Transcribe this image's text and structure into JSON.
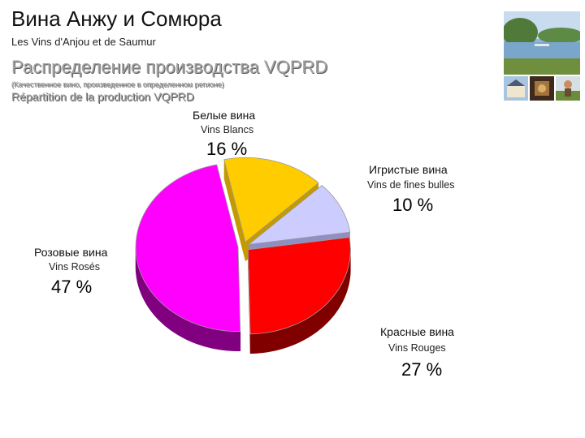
{
  "header": {
    "title": "Вина Анжу и Сомюра",
    "subtitle": "Les Vins d'Anjou et de Saumur"
  },
  "section": {
    "title": "Распределение производства VQPRD",
    "note": "(Качественное вино, произведенное в определенном регионе)",
    "title_fr": "Répartition de la production VQPRD"
  },
  "chart_data": {
    "type": "pie",
    "title": "Распределение производства VQPRD",
    "slices": [
      {
        "label_ru": "Белые вина",
        "label_fr": "Vins Blancs",
        "value": 16,
        "value_label": "16 %",
        "color": "#ffcc00",
        "side": "#c49a00"
      },
      {
        "label_ru": "Игристые вина",
        "label_fr": "Vins de fines bulles",
        "value": 10,
        "value_label": "10 %",
        "color": "#ccccff",
        "side": "#8f8fc4"
      },
      {
        "label_ru": "Красные вина",
        "label_fr": "Vins Rouges",
        "value": 27,
        "value_label": "27 %",
        "color": "#ff0000",
        "side": "#800000"
      },
      {
        "label_ru": "Розовые вина",
        "label_fr": "Vins Rosés",
        "value": 47,
        "value_label": "47 %",
        "color": "#ff00ff",
        "side": "#800080"
      }
    ]
  },
  "photos": {
    "icons": [
      "lake-photo",
      "castle-photo",
      "cellar-photo",
      "vineyard-photo"
    ]
  }
}
